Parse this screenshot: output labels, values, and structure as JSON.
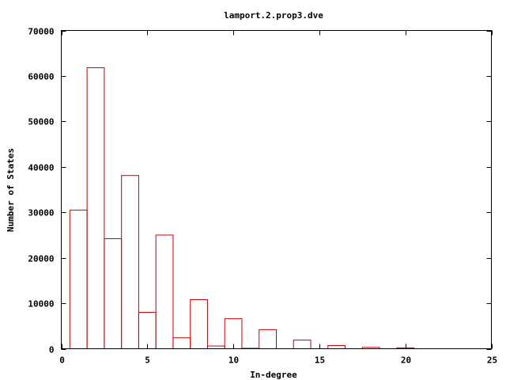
{
  "chart_data": {
    "type": "bar",
    "title": "lamport.2.prop3.dve",
    "xlabel": "In-degree",
    "ylabel": "Number of States",
    "xlim": [
      0,
      25
    ],
    "ylim": [
      0,
      70000
    ],
    "xticks": [
      0,
      5,
      10,
      15,
      20,
      25
    ],
    "yticks": [
      0,
      10000,
      20000,
      30000,
      40000,
      50000,
      60000,
      70000
    ],
    "bar_width": 1,
    "grid": false,
    "legend": "none",
    "color": "#cc0000",
    "x": [
      1,
      2,
      3,
      4,
      5,
      6,
      7,
      8,
      9,
      10,
      11,
      12,
      13,
      14,
      15,
      16,
      17,
      18,
      19,
      20,
      21
    ],
    "values": [
      30500,
      61800,
      24200,
      38100,
      8000,
      25000,
      2400,
      10800,
      600,
      6600,
      100,
      4200,
      0,
      1900,
      0,
      700,
      0,
      300,
      0,
      200,
      0
    ]
  }
}
